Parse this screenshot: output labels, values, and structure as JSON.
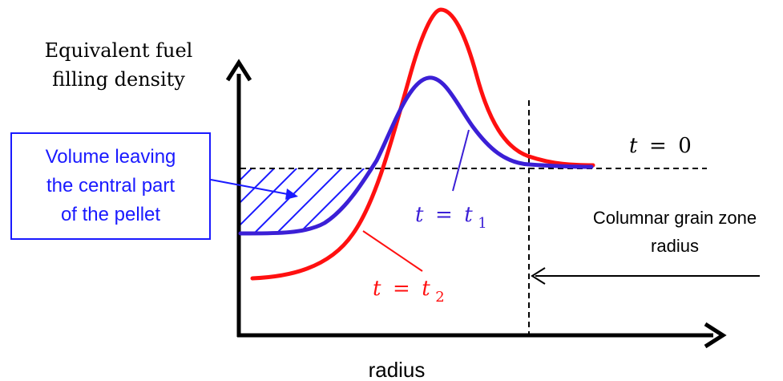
{
  "ylabel_lines": [
    "Equivalent fuel",
    "filling density"
  ],
  "xlabel": "radius",
  "callout_lines": [
    "Volume leaving",
    "the central part",
    "of the pellet"
  ],
  "zone_label_lines": [
    "Columnar grain zone",
    "radius"
  ],
  "curve_labels": {
    "t0": {
      "lhs": "t",
      "eq": "=",
      "rhs": "0"
    },
    "t1": {
      "lhs": "t",
      "eq": "=",
      "rhs": "t",
      "sub": "1"
    },
    "t2": {
      "lhs": "t",
      "eq": "=",
      "rhs": "t",
      "sub": "2"
    }
  },
  "colors": {
    "t1_curve": "#3b1fd6",
    "t2_curve": "#ff1010",
    "callout": "#1a1aff",
    "axes": "#000000"
  }
}
